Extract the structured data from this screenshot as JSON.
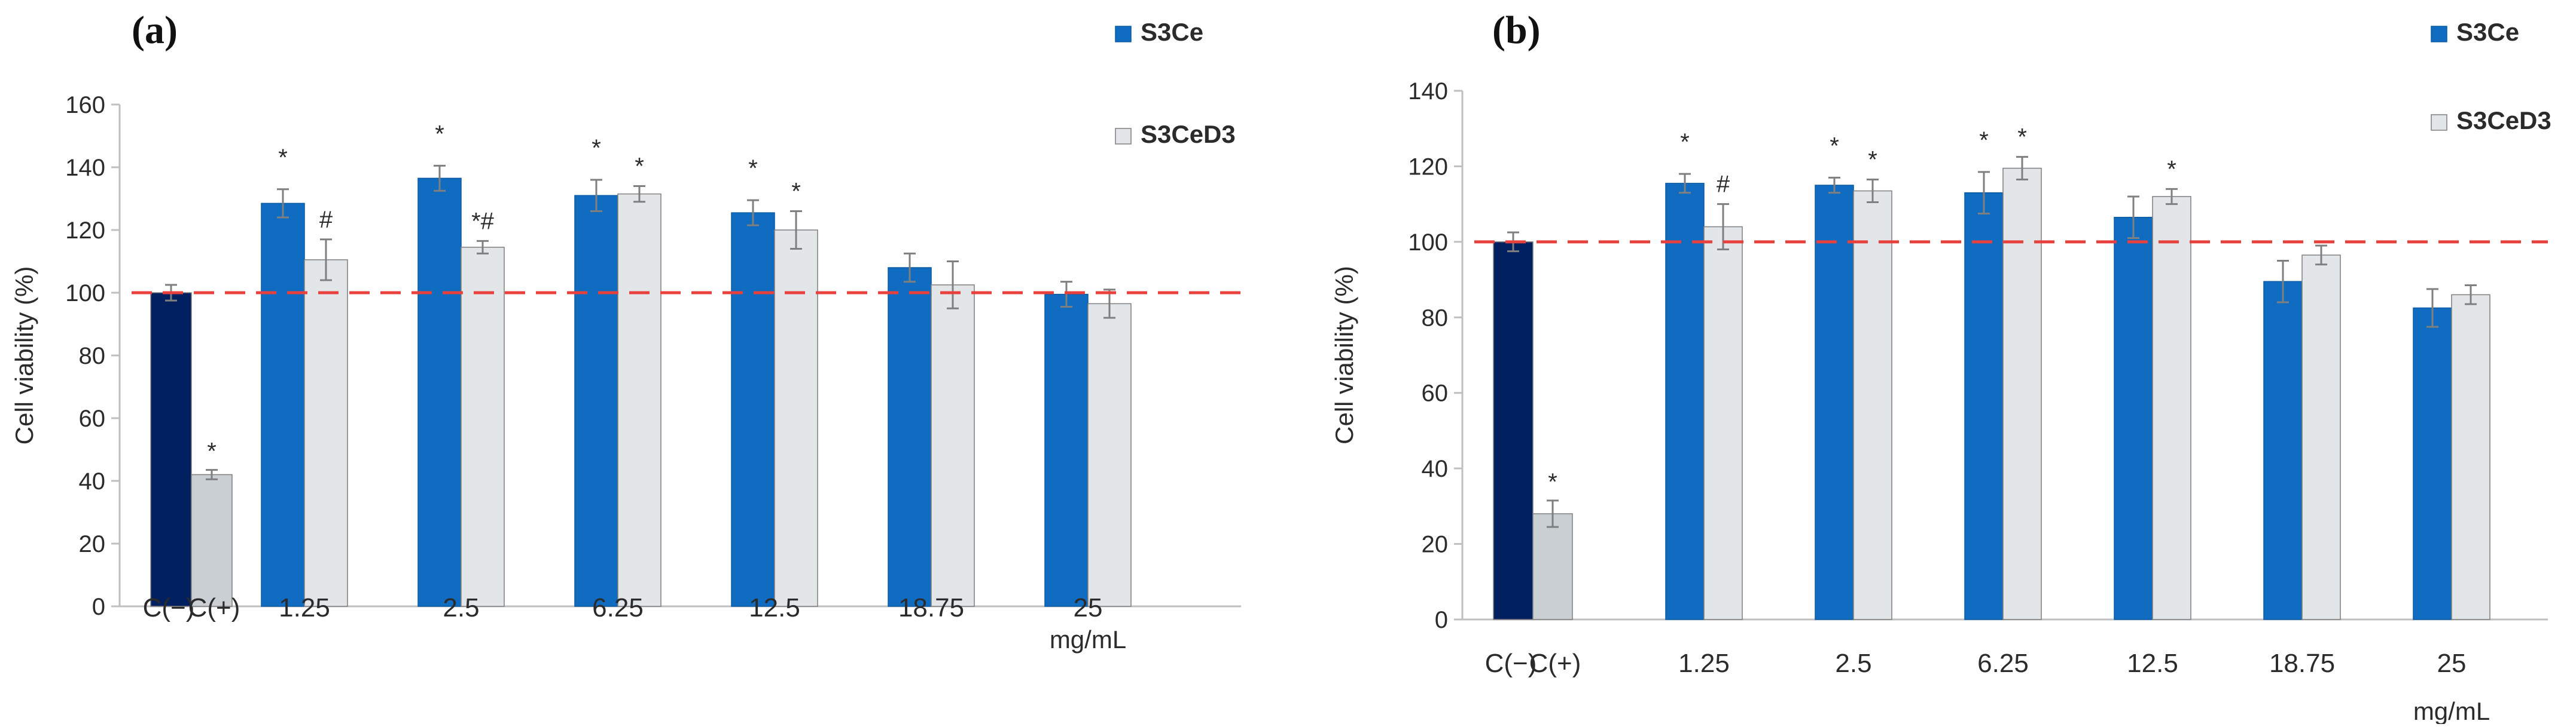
{
  "chart_data": [
    {
      "type": "bar",
      "panel_label": "(a)",
      "ylabel": "Cell viability (%)",
      "xlabel": "",
      "x_unit": "mg/mL",
      "ylim": [
        0,
        160
      ],
      "yticks": [
        0,
        20,
        40,
        60,
        80,
        100,
        120,
        140,
        160
      ],
      "reference_line": 100,
      "grid": false,
      "legend_position": "right",
      "controls": [
        {
          "label": "C(−)",
          "value": 100,
          "error": 2.5,
          "annotation": "",
          "color": "#002060"
        },
        {
          "label": "C(+)",
          "value": 42,
          "error": 1.5,
          "annotation": "*",
          "color": "#c9cfd3"
        }
      ],
      "categories": [
        "1.25",
        "2.5",
        "6.25",
        "12.5",
        "18.75",
        "25"
      ],
      "series": [
        {
          "name": "S3Ce",
          "color": "#0f6cc0",
          "values": [
            128.5,
            136.5,
            131,
            125.5,
            108,
            99.5
          ],
          "errors": [
            4.5,
            4,
            5,
            4,
            4.5,
            4
          ],
          "annotations": [
            "*",
            "*",
            "*",
            "*",
            "",
            ""
          ]
        },
        {
          "name": "S3CeD3",
          "color": "#e3e6e8",
          "values": [
            110.5,
            114.5,
            131.5,
            120,
            102.5,
            96.5
          ],
          "errors": [
            6.5,
            2,
            2.5,
            6,
            7.5,
            4.5
          ],
          "annotations": [
            "#",
            "*#",
            "*",
            "*",
            "",
            ""
          ]
        }
      ]
    },
    {
      "type": "bar",
      "panel_label": "(b)",
      "ylabel": "Cell viability (%)",
      "xlabel": "",
      "x_unit": "mg/mL",
      "ylim": [
        0,
        140
      ],
      "yticks": [
        0,
        20,
        40,
        60,
        80,
        100,
        120,
        140
      ],
      "reference_line": 100,
      "grid": false,
      "legend_position": "right",
      "controls": [
        {
          "label": "C(−)",
          "value": 100,
          "error": 2.5,
          "annotation": "",
          "color": "#002060"
        },
        {
          "label": "C(+)",
          "value": 28,
          "error": 3.5,
          "annotation": "*",
          "color": "#c9cfd3"
        }
      ],
      "categories": [
        "1.25",
        "2.5",
        "6.25",
        "12.5",
        "18.75",
        "25"
      ],
      "series": [
        {
          "name": "S3Ce",
          "color": "#0f6cc0",
          "values": [
            115.5,
            115,
            113,
            106.5,
            89.5,
            82.5
          ],
          "errors": [
            2.5,
            2,
            5.5,
            5.5,
            5.5,
            5
          ],
          "annotations": [
            "*",
            "*",
            "*",
            "",
            "",
            ""
          ]
        },
        {
          "name": "S3CeD3",
          "color": "#e3e6e8",
          "values": [
            104,
            113.5,
            119.5,
            112,
            96.5,
            86
          ],
          "errors": [
            6,
            3,
            3,
            2,
            2.5,
            2.5
          ],
          "annotations": [
            "#",
            "*",
            "*",
            "*",
            "",
            ""
          ]
        }
      ]
    }
  ],
  "colors": {
    "reference_line": "#e8403c",
    "axis": "#bfbfbf",
    "error_bar": "#7f7f7f"
  }
}
